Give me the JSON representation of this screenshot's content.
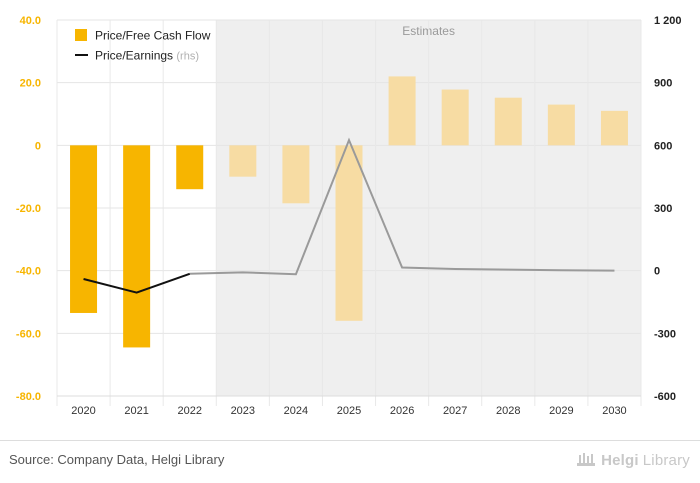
{
  "chart_data": {
    "type": "bar",
    "categories": [
      "2020",
      "2021",
      "2022",
      "2023",
      "2024",
      "2025",
      "2026",
      "2027",
      "2028",
      "2029",
      "2030"
    ],
    "series": [
      {
        "name": "Price/Free Cash Flow",
        "kind": "bar",
        "axis": "left",
        "values": [
          -53.5,
          -64.5,
          -14.0,
          -10.0,
          -18.5,
          -56.0,
          22.0,
          17.8,
          15.2,
          13.0,
          11.0
        ]
      },
      {
        "name": "Price/Earnings",
        "kind": "line",
        "axis": "right",
        "values": [
          -40,
          -105,
          -15,
          -8,
          -17,
          625,
          15,
          8,
          5,
          2,
          0
        ]
      }
    ],
    "legend_suffix_rhs": "(rhs)",
    "estimates_label": "Estimates",
    "first_estimate_category": "2023",
    "y_left": {
      "range": [
        -80,
        40
      ],
      "ticks": [
        "40.0",
        "20.0",
        "0",
        "-20.0",
        "-40.0",
        "-60.0",
        "-80.0"
      ]
    },
    "y_right": {
      "range": [
        -600,
        1200
      ],
      "ticks": [
        "1 200",
        "900",
        "600",
        "300",
        "0",
        "-300",
        "-600"
      ]
    },
    "legend_position": "top-left",
    "grid": true
  },
  "colors": {
    "bar_actual": "#f7b500",
    "bar_estimate": "#f7dca3",
    "line_actual": "#111111",
    "line_estimate": "#9a9a9a",
    "estimate_shade": "#efefef",
    "axis_text_left": "#f7b500",
    "axis_text_right": "#222222"
  },
  "footer": {
    "source": "Source: Company Data, Helgi Library",
    "logo_a": "Helgi",
    "logo_b": "Library"
  }
}
